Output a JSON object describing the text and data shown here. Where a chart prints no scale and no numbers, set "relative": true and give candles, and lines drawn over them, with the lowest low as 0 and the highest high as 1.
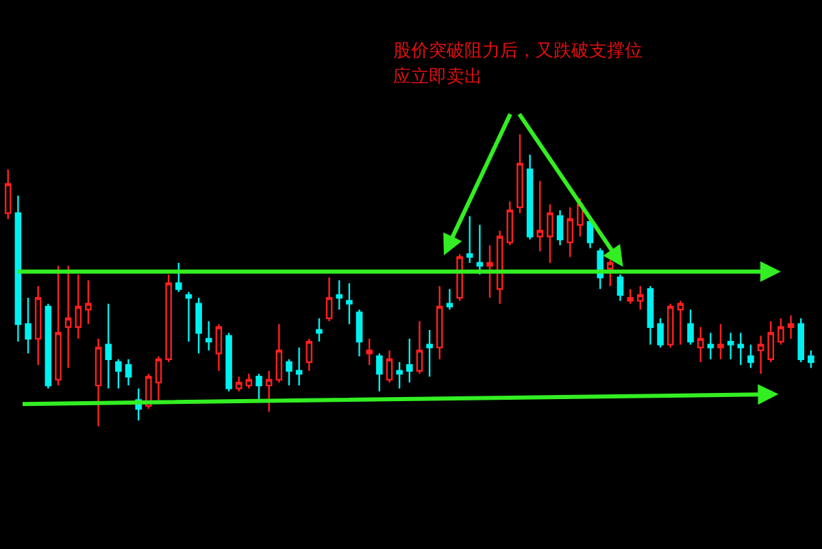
{
  "chart_data": {
    "type": "candlestick",
    "relative": true,
    "grid": false,
    "legend": false,
    "ref_lines": [
      {
        "axis": "y",
        "value": 0.53,
        "color": "#33ee22"
      }
    ],
    "colors": [
      "#ff2020",
      "#00f0f0",
      "#00f0f0",
      "#ff2020",
      "#00f0f0",
      "#ff2020",
      "#ff2020",
      "#ff2020",
      "#ff2020",
      "#ff2020",
      "#00f0f0",
      "#00f0f0",
      "#00f0f0",
      "#00f0f0",
      "#ff2020",
      "#ff2020",
      "#ff2020",
      "#00f0f0",
      "#00f0f0",
      "#00f0f0",
      "#00f0f0",
      "#ff2020",
      "#00f0f0",
      "#ff2020",
      "#ff2020",
      "#00f0f0",
      "#ff2020",
      "#ff2020",
      "#00f0f0",
      "#00f0f0",
      "#ff2020",
      "#00f0f0",
      "#ff2020",
      "#00f0f0",
      "#00f0f0",
      "#00f0f0",
      "#ff2020",
      "#00f0f0",
      "#ff2020",
      "#00f0f0",
      "#00f0f0",
      "#ff2020",
      "#00f0f0",
      "#ff2020",
      "#00f0f0",
      "#ff2020",
      "#00f0f0",
      "#00f0f0",
      "#ff2020",
      "#ff2020",
      "#ff2020",
      "#ff2020",
      "#00f0f0",
      "#ff2020",
      "#ff2020",
      "#00f0f0",
      "#ff2020",
      "#ff2020",
      "#00f0f0",
      "#00f0f0",
      "#ff2020",
      "#00f0f0",
      "#ff2020",
      "#ff2020",
      "#00f0f0",
      "#00f0f0",
      "#ff2020",
      "#ff2020",
      "#00f0f0",
      "#ff2020",
      "#00f0f0",
      "#ff2020",
      "#00f0f0",
      "#00f0f0",
      "#00f0f0",
      "#ff2020",
      "#ff2020",
      "#ff2020",
      "#ff2020",
      "#00f0f0",
      "#00f0f0"
    ],
    "annotations": [
      "股价突破阻力后，又跌破支撑位",
      "应立即卖出"
    ],
    "categories": [
      null,
      null,
      null,
      null,
      null,
      null,
      null,
      null,
      null,
      null,
      null,
      null,
      null,
      null,
      null,
      null,
      null,
      null,
      null,
      null,
      null,
      null,
      null,
      null,
      null,
      null,
      null,
      null,
      null,
      null,
      null,
      null,
      null,
      null,
      null,
      null,
      null,
      null,
      null,
      null,
      null,
      null,
      null,
      null,
      null,
      null,
      null,
      null,
      null,
      null,
      null,
      null,
      null,
      null,
      null,
      null,
      null,
      null,
      null,
      null,
      null,
      null,
      null,
      null,
      null,
      null,
      null,
      null,
      null,
      null,
      null,
      null,
      null,
      null,
      null,
      null,
      null,
      null,
      null,
      null,
      null
    ],
    "ohlc": [
      [
        0.73,
        0.88,
        0.71,
        0.83
      ],
      [
        0.73,
        0.79,
        0.29,
        0.35
      ],
      [
        0.35,
        0.44,
        0.25,
        0.3
      ],
      [
        0.3,
        0.48,
        0.21,
        0.44
      ],
      [
        0.41,
        0.42,
        0.13,
        0.14
      ],
      [
        0.16,
        0.55,
        0.14,
        0.32
      ],
      [
        0.34,
        0.55,
        0.2,
        0.37
      ],
      [
        0.34,
        0.52,
        0.3,
        0.41
      ],
      [
        0.4,
        0.5,
        0.35,
        0.42
      ],
      [
        0.14,
        0.3,
        0,
        0.27
      ],
      [
        0.28,
        0.42,
        0.13,
        0.23
      ],
      [
        0.22,
        0.23,
        0.13,
        0.19
      ],
      [
        0.21,
        0.23,
        0.14,
        0.17
      ],
      [
        0.09,
        0.13,
        0.02,
        0.06
      ],
      [
        0.07,
        0.18,
        0.06,
        0.17
      ],
      [
        0.15,
        0.24,
        0.09,
        0.23
      ],
      [
        0.23,
        0.52,
        0.22,
        0.49
      ],
      [
        0.49,
        0.56,
        0.46,
        0.47
      ],
      [
        0.45,
        0.46,
        0.29,
        0.44
      ],
      [
        0.42,
        0.44,
        0.25,
        0.32
      ],
      [
        0.3,
        0.36,
        0.26,
        0.29
      ],
      [
        0.25,
        0.35,
        0.19,
        0.34
      ],
      [
        0.31,
        0.32,
        0.12,
        0.13
      ],
      [
        0.13,
        0.17,
        0.12,
        0.15
      ],
      [
        0.14,
        0.18,
        0.13,
        0.16
      ],
      [
        0.17,
        0.18,
        0.09,
        0.14
      ],
      [
        0.14,
        0.19,
        0.05,
        0.16
      ],
      [
        0.16,
        0.35,
        0.15,
        0.26
      ],
      [
        0.22,
        0.23,
        0.14,
        0.19
      ],
      [
        0.19,
        0.27,
        0.14,
        0.18
      ],
      [
        0.22,
        0.3,
        0.19,
        0.29
      ],
      [
        0.33,
        0.37,
        0.29,
        0.32
      ],
      [
        0.37,
        0.51,
        0.36,
        0.44
      ],
      [
        0.45,
        0.5,
        0.4,
        0.44
      ],
      [
        0.43,
        0.49,
        0.35,
        0.42
      ],
      [
        0.39,
        0.4,
        0.24,
        0.29
      ],
      [
        0.25,
        0.3,
        0.21,
        0.26
      ],
      [
        0.24,
        0.25,
        0.12,
        0.18
      ],
      [
        0.16,
        0.26,
        0.15,
        0.23
      ],
      [
        0.19,
        0.22,
        0.13,
        0.18
      ],
      [
        0.21,
        0.3,
        0.15,
        0.19
      ],
      [
        0.19,
        0.36,
        0.18,
        0.26
      ],
      [
        0.28,
        0.33,
        0.17,
        0.27
      ],
      [
        0.27,
        0.48,
        0.23,
        0.41
      ],
      [
        0.42,
        0.47,
        0.4,
        0.41
      ],
      [
        0.44,
        0.59,
        0.43,
        0.58
      ],
      [
        0.59,
        0.72,
        0.56,
        0.58
      ],
      [
        0.56,
        0.69,
        0.52,
        0.55
      ],
      [
        0.55,
        0.62,
        0.44,
        0.56
      ],
      [
        0.47,
        0.67,
        0.42,
        0.65
      ],
      [
        0.63,
        0.77,
        0.62,
        0.74
      ],
      [
        0.75,
        1,
        0.73,
        0.9
      ],
      [
        0.88,
        0.93,
        0.64,
        0.65
      ],
      [
        0.65,
        0.84,
        0.6,
        0.67
      ],
      [
        0.65,
        0.76,
        0.56,
        0.73
      ],
      [
        0.72,
        0.74,
        0.62,
        0.64
      ],
      [
        0.63,
        0.75,
        0.58,
        0.71
      ],
      [
        0.69,
        0.78,
        0.65,
        0.76
      ],
      [
        0.7,
        0.71,
        0.61,
        0.63
      ],
      [
        0.6,
        0.61,
        0.47,
        0.51
      ],
      [
        0.54,
        0.57,
        0.48,
        0.56
      ],
      [
        0.51,
        0.52,
        0.43,
        0.45
      ],
      [
        0.43,
        0.47,
        0.42,
        0.44
      ],
      [
        0.43,
        0.48,
        0.4,
        0.45
      ],
      [
        0.47,
        0.48,
        0.28,
        0.34
      ],
      [
        0.35,
        0.37,
        0.27,
        0.28
      ],
      [
        0.28,
        0.42,
        0.27,
        0.41
      ],
      [
        0.4,
        0.43,
        0.28,
        0.42
      ],
      [
        0.35,
        0.4,
        0.28,
        0.29
      ],
      [
        0.27,
        0.34,
        0.22,
        0.3
      ],
      [
        0.28,
        0.32,
        0.23,
        0.27
      ],
      [
        0.27,
        0.35,
        0.23,
        0.28
      ],
      [
        0.29,
        0.32,
        0.23,
        0.28
      ],
      [
        0.28,
        0.32,
        0.21,
        0.27
      ],
      [
        0.24,
        0.28,
        0.2,
        0.22
      ],
      [
        0.26,
        0.31,
        0.18,
        0.28
      ],
      [
        0.23,
        0.36,
        0.22,
        0.32
      ],
      [
        0.29,
        0.37,
        0.28,
        0.34
      ],
      [
        0.34,
        0.38,
        0.3,
        0.35
      ],
      [
        0.35,
        0.37,
        0.22,
        0.23
      ],
      [
        0.24,
        0.26,
        0.2,
        0.22
      ]
    ]
  }
}
